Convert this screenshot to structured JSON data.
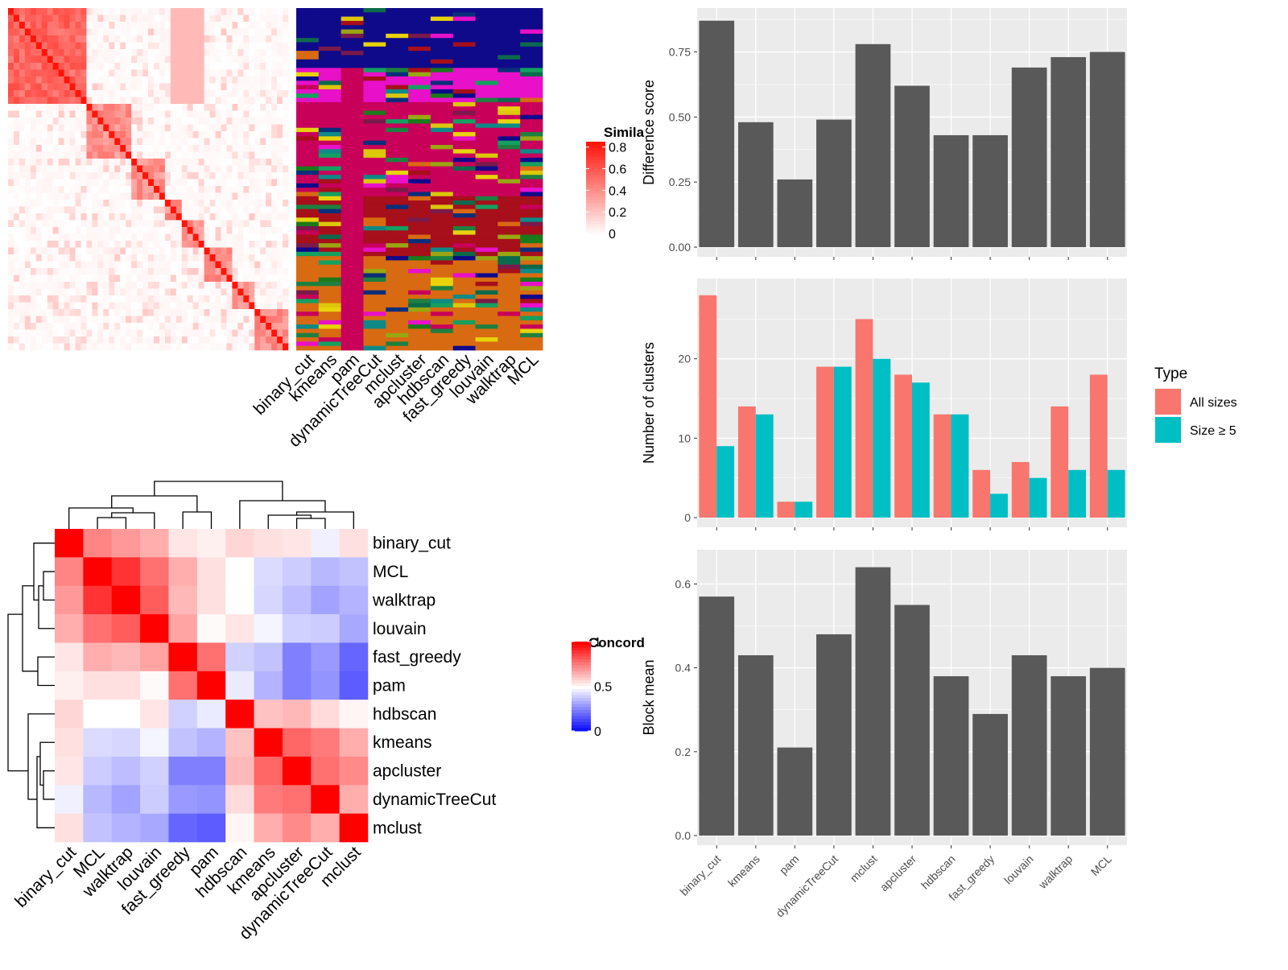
{
  "heatmap1": {
    "legend_title": "Simila",
    "legend_ticks": [
      "0.8",
      "0.6",
      "0.4",
      "0.2",
      "0"
    ],
    "legend_max": 0.85,
    "columns": [
      "binary_cut",
      "kmeans",
      "pam",
      "dynamicTreeCut",
      "mclust",
      "apcluster",
      "hdbscan",
      "fast_greedy",
      "louvain",
      "walktrap",
      "MCL"
    ],
    "cluster_colors": [
      "#0f0a8a",
      "#c8005a",
      "#d86a12",
      "#0a2f7a",
      "#e810c8",
      "#1e8040",
      "#a70f1b",
      "#dcc70a",
      "#0e8a86",
      "#1b7a1a",
      "#9aa611",
      "#e8d30a",
      "#0c6a4c",
      "#7a1a4a",
      "#14a060"
    ]
  },
  "concordance": {
    "legend_title": "Concord",
    "legend_ticks": [
      "1",
      "0.5",
      "0"
    ],
    "row_labels": [
      "binary_cut",
      "MCL",
      "walktrap",
      "louvain",
      "fast_greedy",
      "pam",
      "hdbscan",
      "kmeans",
      "apcluster",
      "dynamicTreeCut",
      "mclust"
    ],
    "col_labels": [
      "binary_cut",
      "MCL",
      "walktrap",
      "louvain",
      "fast_greedy",
      "pam",
      "hdbscan",
      "kmeans",
      "apcluster",
      "dynamicTreeCut",
      "mclust"
    ],
    "matrix": [
      [
        1.0,
        0.74,
        0.7,
        0.66,
        0.55,
        0.53,
        0.58,
        0.56,
        0.55,
        0.47,
        0.56
      ],
      [
        0.74,
        1.0,
        0.9,
        0.78,
        0.66,
        0.56,
        0.5,
        0.43,
        0.4,
        0.36,
        0.38
      ],
      [
        0.7,
        0.9,
        1.0,
        0.82,
        0.64,
        0.56,
        0.5,
        0.42,
        0.37,
        0.32,
        0.35
      ],
      [
        0.66,
        0.78,
        0.82,
        1.0,
        0.68,
        0.51,
        0.55,
        0.48,
        0.41,
        0.4,
        0.33
      ],
      [
        0.55,
        0.66,
        0.64,
        0.68,
        1.0,
        0.78,
        0.41,
        0.38,
        0.25,
        0.3,
        0.2
      ],
      [
        0.53,
        0.56,
        0.56,
        0.51,
        0.78,
        1.0,
        0.46,
        0.35,
        0.25,
        0.29,
        0.18
      ],
      [
        0.58,
        0.5,
        0.5,
        0.55,
        0.41,
        0.46,
        1.0,
        0.62,
        0.64,
        0.57,
        0.52
      ],
      [
        0.56,
        0.43,
        0.42,
        0.48,
        0.38,
        0.35,
        0.62,
        1.0,
        0.8,
        0.76,
        0.66
      ],
      [
        0.55,
        0.4,
        0.37,
        0.41,
        0.25,
        0.25,
        0.64,
        0.8,
        1.0,
        0.78,
        0.73
      ],
      [
        0.47,
        0.36,
        0.32,
        0.4,
        0.3,
        0.29,
        0.57,
        0.76,
        0.78,
        1.0,
        0.66
      ],
      [
        0.56,
        0.38,
        0.35,
        0.33,
        0.2,
        0.18,
        0.52,
        0.66,
        0.73,
        0.66,
        1.0
      ]
    ]
  },
  "chart_data": [
    {
      "type": "bar",
      "categories": [
        "binary_cut",
        "kmeans",
        "pam",
        "dynamicTreeCut",
        "mclust",
        "apcluster",
        "hdbscan",
        "fast_greedy",
        "louvain",
        "walktrap",
        "MCL"
      ],
      "values": [
        0.87,
        0.48,
        0.26,
        0.49,
        0.78,
        0.62,
        0.43,
        0.43,
        0.69,
        0.73,
        0.75
      ],
      "ylabel": "Difference score",
      "ylim": [
        0,
        0.9
      ],
      "yticks": [
        "0.00",
        "0.25",
        "0.50",
        "0.75"
      ],
      "grid": true,
      "fill": "#595959",
      "panel_bg": "#ebebeb"
    },
    {
      "type": "bar",
      "categories": [
        "binary_cut",
        "kmeans",
        "pam",
        "dynamicTreeCut",
        "mclust",
        "apcluster",
        "hdbscan",
        "fast_greedy",
        "louvain",
        "walktrap",
        "MCL"
      ],
      "series": [
        {
          "name": "All sizes",
          "values": [
            28,
            14,
            2,
            19,
            25,
            18,
            13,
            6,
            7,
            14,
            18
          ],
          "color": "#f8766d"
        },
        {
          "name": "Size ≥ 5",
          "values": [
            9,
            13,
            2,
            19,
            20,
            17,
            13,
            3,
            5,
            6,
            6
          ],
          "color": "#00bfc4"
        }
      ],
      "ylabel": "Number of clusters",
      "ylim": [
        0,
        29.5
      ],
      "yticks": [
        "0",
        "10",
        "20"
      ],
      "legend_title": "Type",
      "legend_position": "right",
      "grid": true,
      "panel_bg": "#ebebeb"
    },
    {
      "type": "bar",
      "categories": [
        "binary_cut",
        "kmeans",
        "pam",
        "dynamicTreeCut",
        "mclust",
        "apcluster",
        "hdbscan",
        "fast_greedy",
        "louvain",
        "walktrap",
        "MCL"
      ],
      "values": [
        0.57,
        0.43,
        0.21,
        0.48,
        0.64,
        0.55,
        0.38,
        0.29,
        0.43,
        0.38,
        0.4
      ],
      "ylabel": "Block mean",
      "ylim": [
        0,
        0.67
      ],
      "yticks": [
        "0.0",
        "0.2",
        "0.4",
        "0.6"
      ],
      "grid": true,
      "fill": "#595959",
      "panel_bg": "#ebebeb"
    }
  ]
}
